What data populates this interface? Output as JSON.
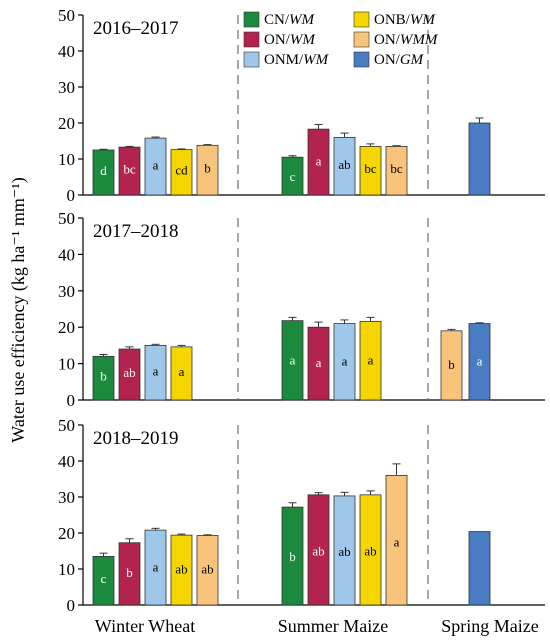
{
  "chart_data": {
    "type": "bar",
    "ylabel": "Water use efficiency (kg ha⁻¹ mm⁻¹)",
    "ylim": [
      0,
      50
    ],
    "yticks": [
      0,
      10,
      20,
      30,
      40,
      50
    ],
    "grid": false,
    "legend_position": "top-center",
    "groups": [
      "Winter Wheat",
      "Summer Maize",
      "Spring Maize"
    ],
    "legend": [
      {
        "key": "CN",
        "label_main": "CN/",
        "label_italic": "WM",
        "color": "#1b8a3c"
      },
      {
        "key": "ON",
        "label_main": "ON/",
        "label_italic": "WM",
        "color": "#b3234f"
      },
      {
        "key": "ONM",
        "label_main": "ONM/",
        "label_italic": "WM",
        "color": "#9ec7ea"
      },
      {
        "key": "ONB",
        "label_main": "ONB/",
        "label_italic": "WM",
        "color": "#f5d600"
      },
      {
        "key": "ONWMM",
        "label_main": "ON/",
        "label_italic": "WMM",
        "color": "#f8c47c"
      },
      {
        "key": "ONGM",
        "label_main": "ON/",
        "label_italic": "GM",
        "color": "#4a7cc4"
      }
    ],
    "panels": [
      {
        "title": "2016–2017",
        "bars": [
          {
            "group": "Winter Wheat",
            "treatment": "CN",
            "value": 12.5,
            "error": 0.2,
            "letter": "d"
          },
          {
            "group": "Winter Wheat",
            "treatment": "ON",
            "value": 13.3,
            "error": 0.2,
            "letter": "bc"
          },
          {
            "group": "Winter Wheat",
            "treatment": "ONM",
            "value": 15.8,
            "error": 0.3,
            "letter": "a"
          },
          {
            "group": "Winter Wheat",
            "treatment": "ONB",
            "value": 12.6,
            "error": 0.2,
            "letter": "cd"
          },
          {
            "group": "Winter Wheat",
            "treatment": "ONWMM",
            "value": 13.8,
            "error": 0.2,
            "letter": "b"
          },
          {
            "group": "Summer Maize",
            "treatment": "CN",
            "value": 10.5,
            "error": 0.4,
            "letter": "c"
          },
          {
            "group": "Summer Maize",
            "treatment": "ON",
            "value": 18.3,
            "error": 1.3,
            "letter": "a"
          },
          {
            "group": "Summer Maize",
            "treatment": "ONM",
            "value": 16.0,
            "error": 1.2,
            "letter": "ab"
          },
          {
            "group": "Summer Maize",
            "treatment": "ONB",
            "value": 13.5,
            "error": 0.7,
            "letter": "bc"
          },
          {
            "group": "Summer Maize",
            "treatment": "ONWMM",
            "value": 13.5,
            "error": 0.2,
            "letter": "bc"
          },
          {
            "group": "Spring Maize",
            "treatment": "ONGM",
            "value": 20.0,
            "error": 1.4,
            "letter": ""
          }
        ]
      },
      {
        "title": "2017–2018",
        "bars": [
          {
            "group": "Winter Wheat",
            "treatment": "CN",
            "value": 12.0,
            "error": 0.5,
            "letter": "b"
          },
          {
            "group": "Winter Wheat",
            "treatment": "ON",
            "value": 14.0,
            "error": 0.6,
            "letter": "ab"
          },
          {
            "group": "Winter Wheat",
            "treatment": "ONM",
            "value": 15.0,
            "error": 0.3,
            "letter": "a"
          },
          {
            "group": "Winter Wheat",
            "treatment": "ONB",
            "value": 14.6,
            "error": 0.4,
            "letter": "a"
          },
          {
            "group": "Summer Maize",
            "treatment": "CN",
            "value": 21.8,
            "error": 0.9,
            "letter": "a"
          },
          {
            "group": "Summer Maize",
            "treatment": "ON",
            "value": 20.0,
            "error": 1.4,
            "letter": "a"
          },
          {
            "group": "Summer Maize",
            "treatment": "ONM",
            "value": 21.0,
            "error": 1.0,
            "letter": "a"
          },
          {
            "group": "Summer Maize",
            "treatment": "ONB",
            "value": 21.6,
            "error": 1.1,
            "letter": "a"
          },
          {
            "group": "Spring Maize",
            "treatment": "ONWMM",
            "value": 19.0,
            "error": 0.4,
            "letter": "b"
          },
          {
            "group": "Spring Maize",
            "treatment": "ONGM",
            "value": 21.0,
            "error": 0.2,
            "letter": "a"
          }
        ]
      },
      {
        "title": "2018–2019",
        "bars": [
          {
            "group": "Winter Wheat",
            "treatment": "CN",
            "value": 13.5,
            "error": 0.9,
            "letter": "c"
          },
          {
            "group": "Winter Wheat",
            "treatment": "ON",
            "value": 17.3,
            "error": 1.1,
            "letter": "b"
          },
          {
            "group": "Winter Wheat",
            "treatment": "ONM",
            "value": 20.8,
            "error": 0.5,
            "letter": "a"
          },
          {
            "group": "Winter Wheat",
            "treatment": "ONB",
            "value": 19.4,
            "error": 0.3,
            "letter": "ab"
          },
          {
            "group": "Winter Wheat",
            "treatment": "ONWMM",
            "value": 19.3,
            "error": 0.2,
            "letter": "ab"
          },
          {
            "group": "Summer Maize",
            "treatment": "CN",
            "value": 27.2,
            "error": 1.2,
            "letter": "b"
          },
          {
            "group": "Summer Maize",
            "treatment": "ON",
            "value": 30.6,
            "error": 0.6,
            "letter": "ab"
          },
          {
            "group": "Summer Maize",
            "treatment": "ONM",
            "value": 30.3,
            "error": 1.0,
            "letter": "ab"
          },
          {
            "group": "Summer Maize",
            "treatment": "ONB",
            "value": 30.6,
            "error": 1.1,
            "letter": "ab"
          },
          {
            "group": "Summer Maize",
            "treatment": "ONWMM",
            "value": 36.0,
            "error": 3.2,
            "letter": "a"
          },
          {
            "group": "Spring Maize",
            "treatment": "ONGM",
            "value": 20.4,
            "error": 0.0,
            "letter": ""
          }
        ]
      }
    ]
  }
}
